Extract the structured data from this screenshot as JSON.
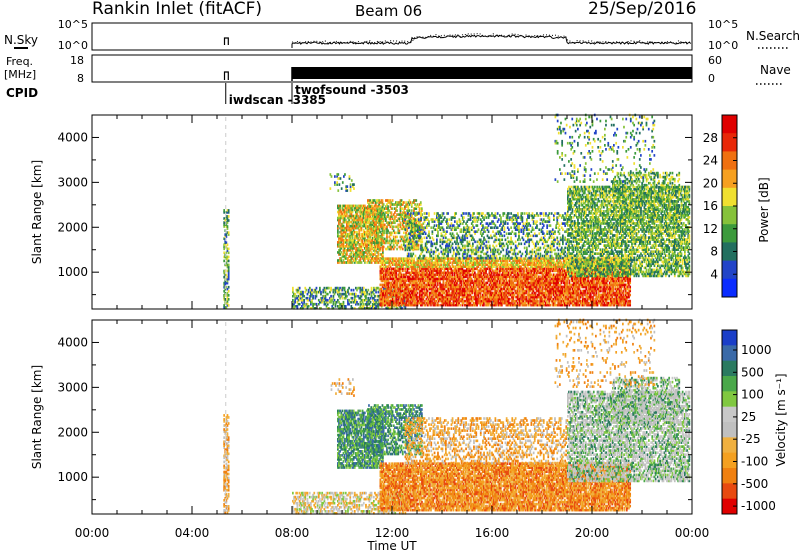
{
  "header": {
    "title": "Rankin Inlet (fitACF)",
    "beam": "Beam 06",
    "date": "25/Sep/2016"
  },
  "chart_data": [
    {
      "type": "line",
      "panel": "noise",
      "left_label": "N.Sky",
      "right_label": "N.Search",
      "left_ticks": [
        "10^5",
        "10^0"
      ],
      "right_ticks": [
        "10^5",
        "10^0"
      ],
      "series": [
        {
          "name": "N.Sky"
        },
        {
          "name": "N.Search"
        }
      ]
    },
    {
      "type": "line",
      "panel": "frequency",
      "left_label_top": "Freq.",
      "left_label_bottom": "[MHz]",
      "right_label": "Nave",
      "left_ticks": [
        18,
        8
      ],
      "right_ticks": [
        60,
        0
      ],
      "series": [
        {
          "name": "Freq."
        },
        {
          "name": "Nave"
        }
      ]
    },
    {
      "type": "table",
      "panel": "cpid",
      "label": "CPID",
      "entries": [
        {
          "text": "iwdscan",
          "id": "-3385",
          "time_hours": 5.35
        },
        {
          "text": "twofsound",
          "id": "-3503",
          "time_hours": 8.0
        }
      ]
    },
    {
      "type": "heatmap",
      "panel": "power",
      "ylabel": "Slant Range [km]",
      "ylim": [
        180,
        4500
      ],
      "yticks": [
        1000,
        2000,
        3000,
        4000
      ],
      "xlim": [
        0,
        24
      ],
      "colorbar": {
        "label": "Power [dB]",
        "ticks": [
          4,
          8,
          12,
          16,
          20,
          24,
          28
        ],
        "range": [
          0,
          32
        ],
        "colors": [
          "#0a2cff",
          "#2244c8",
          "#226f5f",
          "#3c9a3c",
          "#86c23a",
          "#f0e030",
          "#f6a020",
          "#f07010",
          "#e82808",
          "#e00000"
        ]
      }
    },
    {
      "type": "heatmap",
      "panel": "velocity",
      "ylabel": "Slant Range [km]",
      "ylim": [
        180,
        4500
      ],
      "yticks": [
        1000,
        2000,
        3000,
        4000
      ],
      "xlabel": "Time UT",
      "xlim": [
        0,
        24
      ],
      "xticks": [
        "00:00",
        "04:00",
        "08:00",
        "12:00",
        "16:00",
        "20:00",
        "00:00"
      ],
      "colorbar": {
        "label": "Velocity [m s⁻¹]",
        "ticks": [
          "1000",
          "500",
          "100",
          "25",
          "-25",
          "-100",
          "-500",
          "-1000"
        ],
        "colors": [
          "#1a3ec8",
          "#3a6aa8",
          "#2a7a60",
          "#4aa84a",
          "#80c840",
          "#c8c8c8",
          "#c0c0c0",
          "#f0b040",
          "#f4a020",
          "#f08010",
          "#e84a10",
          "#e00000"
        ]
      }
    }
  ]
}
